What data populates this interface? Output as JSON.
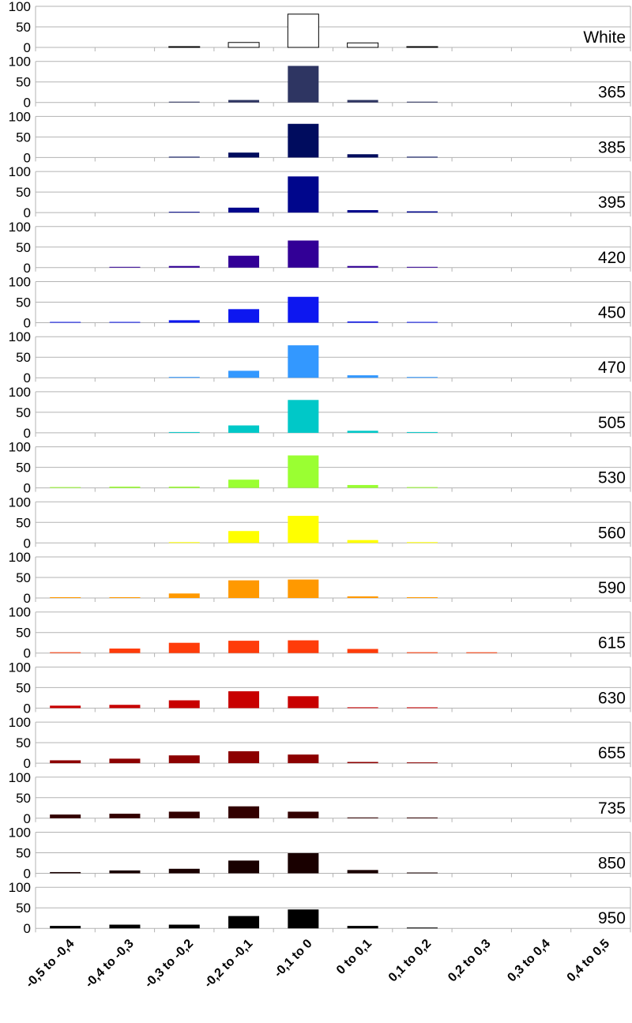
{
  "chart_data": {
    "type": "bar",
    "layout": "small-multiples-stacked",
    "categories": [
      "-0,5 to -0,4",
      "-0,4 to -0,3",
      "-0,3 to -0,2",
      "-0,2 to -0,1",
      "-0,1 to 0",
      "0 to 0,1",
      "0,1 to 0,2",
      "0,2 to 0,3",
      "0,3 to 0,4",
      "0,4 to 0,5"
    ],
    "ylim": [
      0,
      100
    ],
    "yticks": [
      "0",
      "50",
      "100"
    ],
    "grid": true,
    "panels": [
      {
        "label": "White",
        "color": "#ffffff",
        "stroke": "#000000",
        "values": [
          0,
          0,
          1,
          12,
          81,
          11,
          1,
          0,
          0,
          0
        ]
      },
      {
        "label": "365",
        "color": "#2e3562",
        "values": [
          0,
          0,
          1,
          6,
          89,
          6,
          1,
          0,
          0,
          0
        ]
      },
      {
        "label": "385",
        "color": "#000c5e",
        "values": [
          0,
          0,
          1,
          12,
          82,
          8,
          1,
          0,
          0,
          0
        ]
      },
      {
        "label": "395",
        "color": "#00068c",
        "values": [
          0,
          0,
          1,
          12,
          88,
          6,
          3,
          0,
          0,
          0
        ]
      },
      {
        "label": "420",
        "color": "#320096",
        "values": [
          0,
          1,
          4,
          29,
          66,
          4,
          1,
          0,
          0,
          0
        ]
      },
      {
        "label": "450",
        "color": "#0d17f0",
        "values": [
          1,
          1,
          6,
          33,
          63,
          3,
          1,
          0,
          0,
          0
        ]
      },
      {
        "label": "470",
        "color": "#3398ff",
        "values": [
          0,
          0,
          2,
          17,
          79,
          6,
          1,
          0,
          0,
          0
        ]
      },
      {
        "label": "505",
        "color": "#00c8c8",
        "values": [
          0,
          0,
          1,
          18,
          80,
          5,
          1,
          0,
          0,
          0
        ]
      },
      {
        "label": "530",
        "color": "#9aff32",
        "values": [
          1,
          3,
          3,
          20,
          79,
          7,
          1,
          0,
          0,
          0
        ]
      },
      {
        "label": "560",
        "color": "#ffff00",
        "values": [
          0,
          0,
          1,
          29,
          66,
          7,
          1,
          0,
          0,
          0
        ]
      },
      {
        "label": "590",
        "color": "#ff9900",
        "values": [
          2,
          2,
          11,
          43,
          45,
          4,
          1,
          0,
          0,
          0
        ]
      },
      {
        "label": "615",
        "color": "#ff3c0a",
        "values": [
          2,
          11,
          25,
          30,
          31,
          10,
          2,
          1,
          0,
          0
        ]
      },
      {
        "label": "630",
        "color": "#c80000",
        "values": [
          6,
          8,
          19,
          41,
          29,
          2,
          1,
          0,
          0,
          0
        ]
      },
      {
        "label": "655",
        "color": "#8c0000",
        "values": [
          7,
          11,
          19,
          29,
          21,
          3,
          1,
          0,
          0,
          0
        ]
      },
      {
        "label": "735",
        "color": "#320000",
        "values": [
          9,
          11,
          16,
          29,
          16,
          2,
          1,
          0,
          0,
          0
        ]
      },
      {
        "label": "850",
        "color": "#190000",
        "values": [
          3,
          7,
          11,
          31,
          49,
          8,
          1,
          0,
          0,
          0
        ]
      },
      {
        "label": "950",
        "color": "#000000",
        "values": [
          6,
          9,
          9,
          30,
          46,
          6,
          2,
          0,
          0,
          0
        ]
      }
    ]
  }
}
